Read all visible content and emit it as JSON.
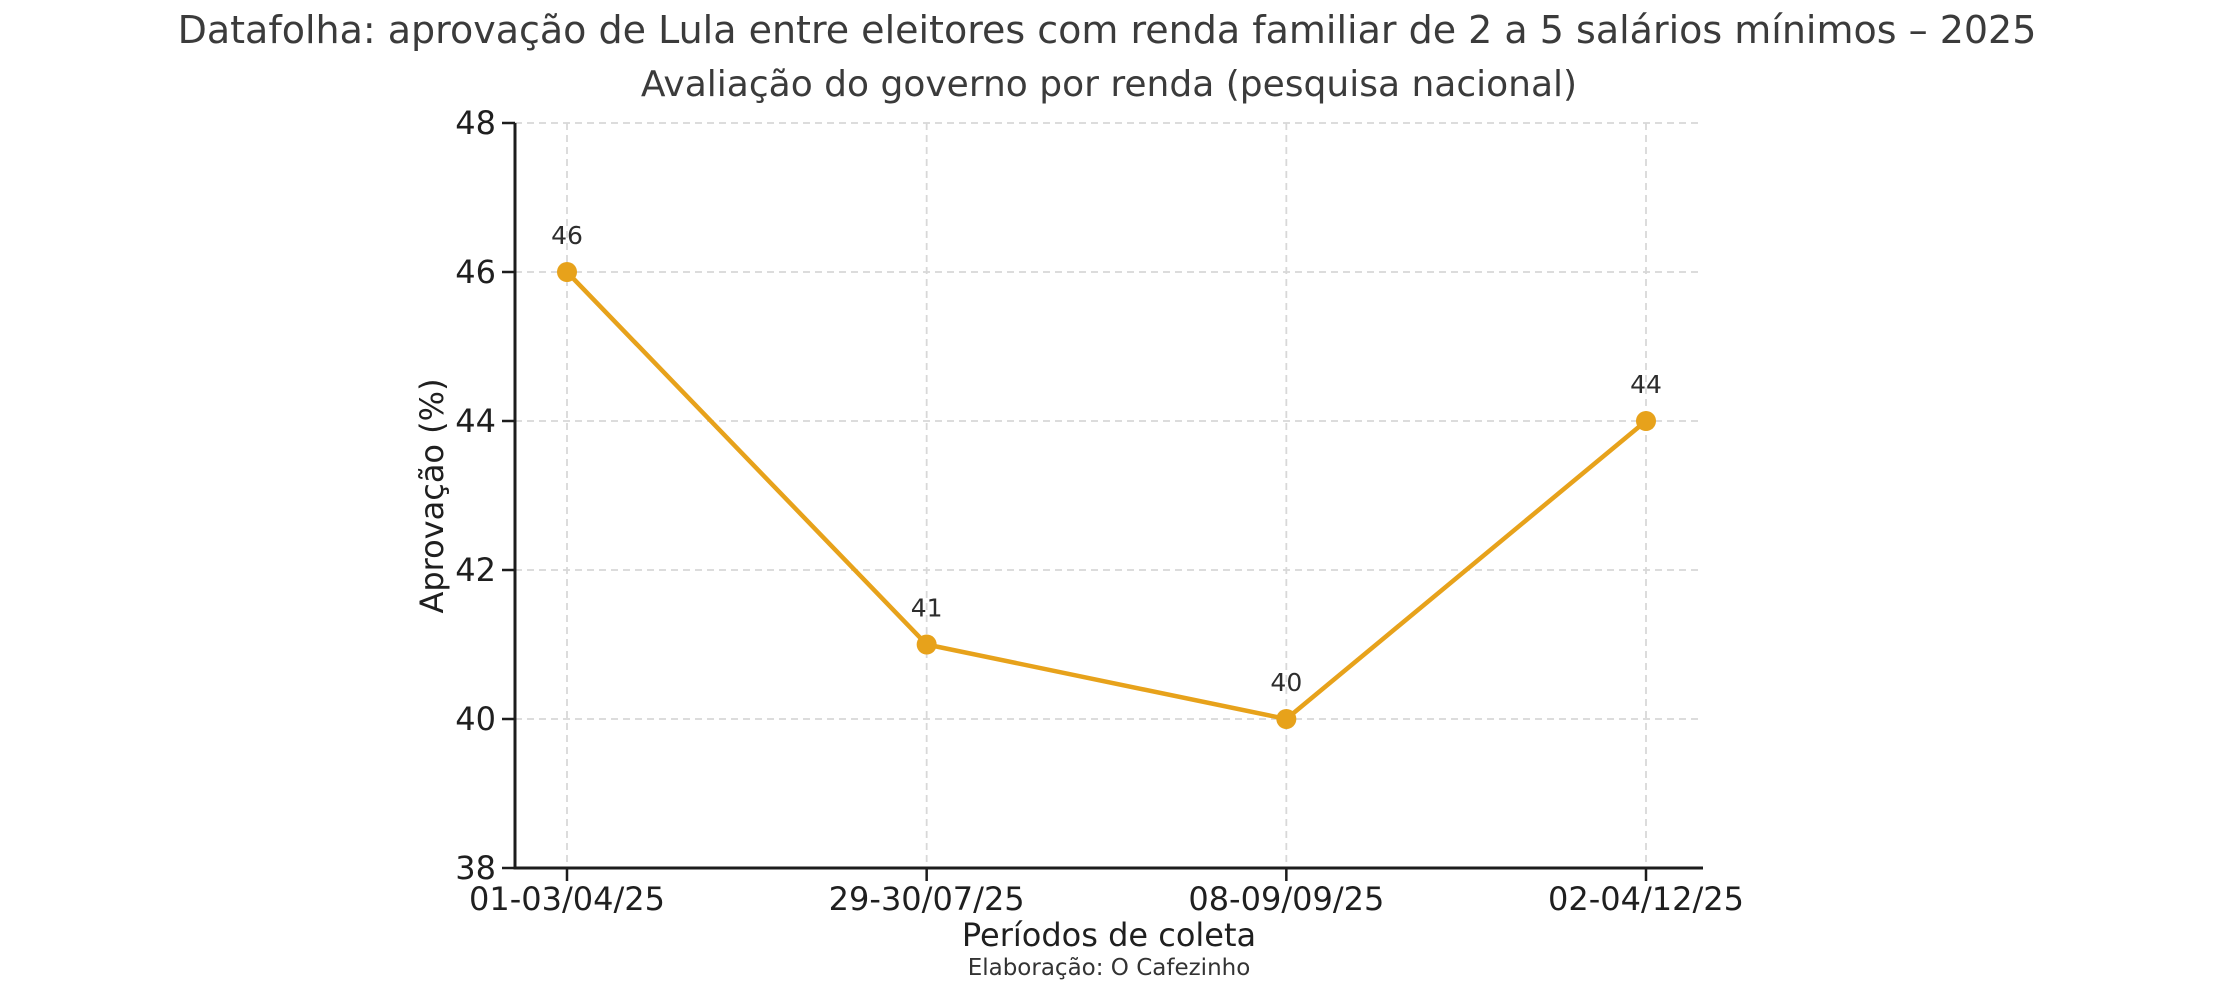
{
  "figure": {
    "title": "Datafolha: aprovação de Lula entre eleitores com renda familiar de 2 a 5 salários mínimos – 2025",
    "footer": "Elaboração: O Cafezinho",
    "background": "#ffffff"
  },
  "chart_data": {
    "type": "line",
    "title": "Avaliação do governo por renda (pesquisa nacional)",
    "categories": [
      "01-03/04/25",
      "29-30/07/25",
      "08-09/09/25",
      "02-04/12/25"
    ],
    "series": [
      {
        "name": "Aprovação",
        "values": [
          46,
          41,
          40,
          44
        ]
      }
    ],
    "point_labels": [
      "46",
      "41",
      "40",
      "44"
    ],
    "xlabel": "Períodos de coleta",
    "ylabel": "Aprovação (%)",
    "ylim": [
      38,
      48
    ],
    "yticks": [
      38,
      40,
      42,
      44,
      46,
      48
    ],
    "grid": true,
    "grid_style": "dashed",
    "legend_position": "none",
    "marker": "circle",
    "colors": {
      "line": "#E7A21B",
      "marker": "#E7A21B",
      "grid": "#D8D8D8",
      "axis": "#1C1C1C",
      "tick_label": "#1F1F1F",
      "title_text": "#3B3B3B",
      "annotation": "#2D2D2D"
    }
  }
}
